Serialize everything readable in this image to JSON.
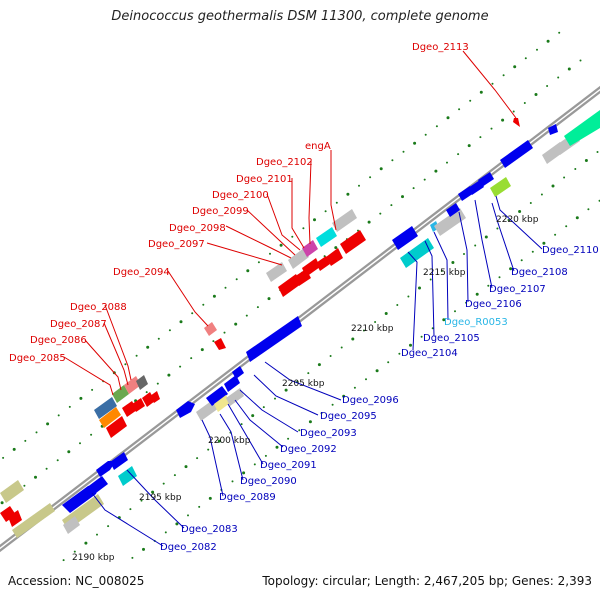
{
  "header": {
    "title": "Deinococcus geothermalis DSM 11300, complete genome"
  },
  "footer": {
    "accession": "Accession: NC_008025",
    "summary": "Topology: circular; Length: 2,467,205 bp; Genes: 2,393"
  },
  "ticks": [
    "2190 kbp",
    "2195 kbp",
    "2200 kbp",
    "2205 kbp",
    "2210 kbp",
    "2215 kbp",
    "2220 kbp"
  ],
  "top_labels": [
    "Dgeo_2113",
    "engA",
    "Dgeo_2102",
    "Dgeo_2101",
    "Dgeo_2100",
    "Dgeo_2099",
    "Dgeo_2098",
    "Dgeo_2097",
    "Dgeo_2094",
    "Dgeo_2088",
    "Dgeo_2087",
    "Dgeo_2086",
    "Dgeo_2085"
  ],
  "bottom_labels": [
    "Dgeo_2110",
    "Dgeo_2108",
    "Dgeo_2107",
    "Dgeo_2106",
    "Dgeo_R0053",
    "Dgeo_2105",
    "Dgeo_2104",
    "Dgeo_2096",
    "Dgeo_2095",
    "Dgeo_2093",
    "Dgeo_2092",
    "Dgeo_2091",
    "Dgeo_2090",
    "Dgeo_2089",
    "Dgeo_2083",
    "Dgeo_2082"
  ],
  "colors": {
    "top_label": "#dd0000",
    "bottom_label": "#0000bb",
    "rna_label": "#29b6e6",
    "forward_gene": "#ee0000",
    "reverse_gene": "#0000ee",
    "backbone": "#888888",
    "gc_dots": "#1a7a1a"
  }
}
